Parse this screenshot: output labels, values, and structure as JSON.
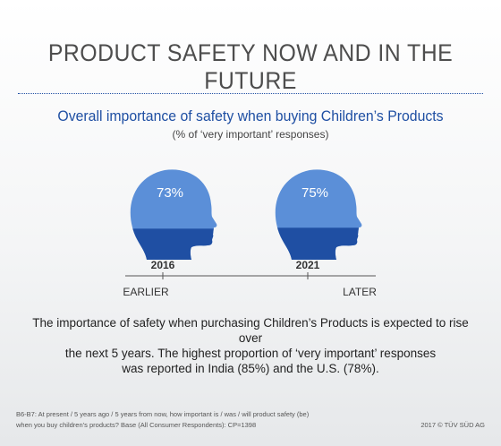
{
  "header": {
    "title": "PRODUCT SAFETY NOW AND IN THE FUTURE"
  },
  "chart_data": {
    "type": "bar",
    "title": "Overall importance of safety when buying Children’s Products",
    "subtitle": "(% of ‘very important’ responses)",
    "categories": [
      "2016",
      "2021"
    ],
    "values": [
      73,
      75
    ],
    "value_labels": [
      "73%",
      "75%"
    ],
    "ylim": [
      0,
      100
    ],
    "axis_start_label": "EARLIER",
    "axis_end_label": "LATER",
    "colors": {
      "fill": "#1f4fa3",
      "empty": "#5b8fd8"
    }
  },
  "description": {
    "line1": "The importance of safety when purchasing Children’s Products is expected to rise over",
    "line2": "the next 5 years. The highest proportion of ‘very important’ responses",
    "line3": "was reported in India (85%) and the U.S. (78%)."
  },
  "footer": {
    "note_line1": "B6-B7: At present / 5 years ago / 5 years from now, how important is / was / will product safety (be)",
    "note_line2": "when you buy children’s products? Base (All Consumer Respondents): CP=1398",
    "copyright": "2017 © TÜV SÜD AG"
  }
}
